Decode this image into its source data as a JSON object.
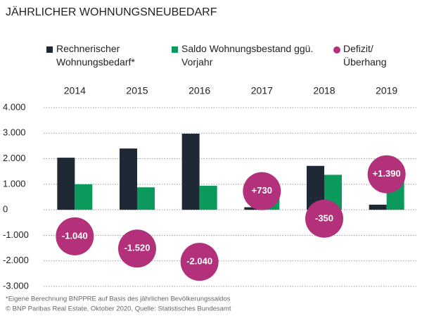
{
  "chart_data": {
    "type": "bar",
    "title": "JÄHRLICHER WOHNUNGSNEUBEDARF",
    "categories": [
      "2014",
      "2015",
      "2016",
      "2017",
      "2018",
      "2019"
    ],
    "series": [
      {
        "name": "Rechnerischer Wohnungsbedarf*",
        "color": "#1e2935",
        "values": [
          2040,
          2400,
          2980,
          100,
          1720,
          200
        ]
      },
      {
        "name": "Saldo Wohnungsbestand ggü. Vorjahr",
        "color": "#0b9a5c",
        "values": [
          1000,
          880,
          940,
          830,
          1370,
          1590
        ]
      },
      {
        "name": "Defizit/ Überhang",
        "color": "#b3307a",
        "type": "scatter",
        "values": [
          -1040,
          -1520,
          -2040,
          730,
          -350,
          1390
        ],
        "value_labels": [
          "-1.040",
          "-1.520",
          "-2.040",
          "+730",
          "-350",
          "+1.390"
        ]
      }
    ],
    "ylim": [
      -3000,
      4000
    ],
    "yticks": [
      {
        "value": 4000,
        "label": "4.000"
      },
      {
        "value": 3000,
        "label": "3.000"
      },
      {
        "value": 2000,
        "label": "2.000"
      },
      {
        "value": 1000,
        "label": "1.000"
      },
      0,
      {
        "value": -1000,
        "label": "-1.000"
      },
      {
        "value": -2000,
        "label": "-2.000"
      },
      {
        "value": -3000,
        "label": "-3.000"
      }
    ],
    "grid": true,
    "footnotes": [
      "*Eigene Berechnung BNPPRE auf Basis des jährlichen Bevölkerungssaldos",
      "© BNP Paribas Real Estate, Oktober 2020, Quelle: Statistisches Bundesamt"
    ]
  }
}
